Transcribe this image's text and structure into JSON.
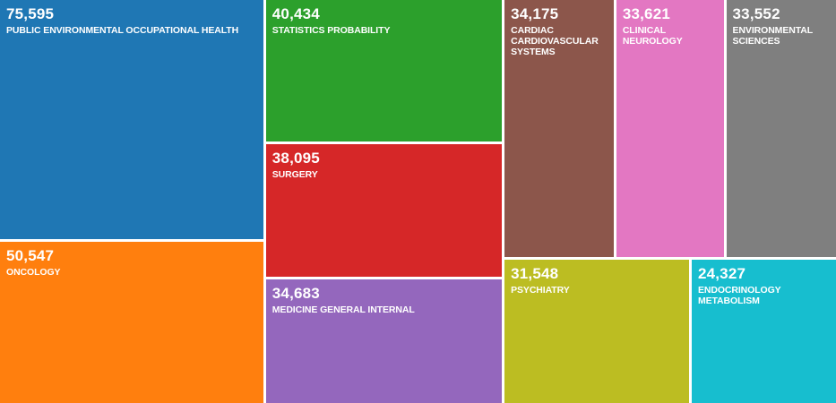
{
  "chart_data": {
    "type": "treemap",
    "items": [
      {
        "label": "PUBLIC ENVIRONMENTAL OCCUPATIONAL HEALTH",
        "value": 75595,
        "value_text": "75,595",
        "color": "#1f77b4"
      },
      {
        "label": "ONCOLOGY",
        "value": 50547,
        "value_text": "50,547",
        "color": "#ff7f0e"
      },
      {
        "label": "STATISTICS PROBABILITY",
        "value": 40434,
        "value_text": "40,434",
        "color": "#2ca02c"
      },
      {
        "label": "SURGERY",
        "value": 38095,
        "value_text": "38,095",
        "color": "#d62728"
      },
      {
        "label": "MEDICINE GENERAL INTERNAL",
        "value": 34683,
        "value_text": "34,683",
        "color": "#9467bd"
      },
      {
        "label": "CARDIAC CARDIOVASCULAR SYSTEMS",
        "value": 34175,
        "value_text": "34,175",
        "color": "#8c564b"
      },
      {
        "label": "CLINICAL NEUROLOGY",
        "value": 33621,
        "value_text": "33,621",
        "color": "#e377c2"
      },
      {
        "label": "ENVIRONMENTAL SCIENCES",
        "value": 33552,
        "value_text": "33,552",
        "color": "#7f7f7f"
      },
      {
        "label": "PSYCHIATRY",
        "value": 31548,
        "value_text": "31,548",
        "color": "#bcbd22"
      },
      {
        "label": "ENDOCRINOLOGY METABOLISM",
        "value": 24327,
        "value_text": "24,327",
        "color": "#17becf"
      }
    ]
  }
}
